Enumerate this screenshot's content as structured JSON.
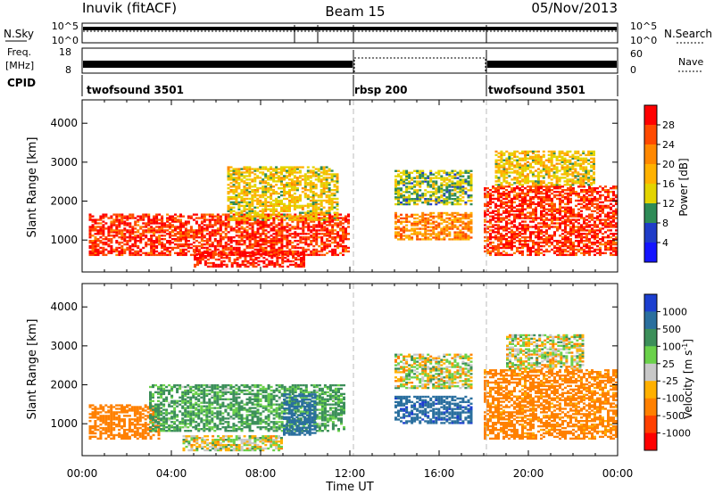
{
  "header": {
    "station": "Inuvik (fitACF)",
    "beam": "Beam 15",
    "date": "05/Nov/2013"
  },
  "top_panels": {
    "nsky_label": "N.Sky",
    "nsky_ticks": [
      "10^5",
      "10^0"
    ],
    "nsearch_label": "N.Search",
    "nsearch_ticks": [
      "10^5",
      "10^0"
    ],
    "freq_label_1": "Freq.",
    "freq_label_2": "[MHz]",
    "freq_ticks": [
      "18",
      "8"
    ],
    "nave_label": "Nave",
    "nave_ticks": [
      "60",
      "0"
    ],
    "cpid_label": "CPID",
    "cpid_segments": [
      {
        "name": "twofsound 3501",
        "start_hour": 0,
        "end_hour": 12
      },
      {
        "name": "rbsp 200",
        "start_hour": 12,
        "end_hour": 18
      },
      {
        "name": "twofsound 3501",
        "start_hour": 18,
        "end_hour": 24
      }
    ]
  },
  "chart_data": [
    {
      "type": "heatmap",
      "title": "",
      "xlabel": "Time UT",
      "ylabel": "Slant Range [km]",
      "xlim": [
        0,
        24
      ],
      "ylim": [
        180,
        4600
      ],
      "x_ticks": [
        "00:00",
        "04:00",
        "08:00",
        "12:00",
        "16:00",
        "20:00",
        "00:00"
      ],
      "y_ticks": [
        1000,
        2000,
        3000,
        4000
      ],
      "colorbar": {
        "label": "Power [dB]",
        "ticks": [
          "28",
          "24",
          "20",
          "16",
          "12",
          "8",
          "4"
        ],
        "colors": [
          "#ff0000",
          "#ff4a00",
          "#ff8800",
          "#ffb200",
          "#e3d400",
          "#2e8b57",
          "#1f3cc8",
          "#1414ff"
        ]
      },
      "regions": [
        {
          "t0": 0.3,
          "t1": 12.0,
          "r0": 600,
          "r1": 1700,
          "level": 26
        },
        {
          "t0": 5.0,
          "t1": 10.0,
          "r0": 300,
          "r1": 700,
          "level": 28
        },
        {
          "t0": 6.5,
          "t1": 11.5,
          "r0": 1500,
          "r1": 2900,
          "level": 14
        },
        {
          "t0": 14.0,
          "t1": 17.5,
          "r0": 1000,
          "r1": 1700,
          "level": 20
        },
        {
          "t0": 14.0,
          "t1": 17.5,
          "r0": 1900,
          "r1": 2800,
          "level": 10
        },
        {
          "t0": 18.0,
          "t1": 24.0,
          "r0": 600,
          "r1": 2400,
          "level": 26
        },
        {
          "t0": 18.5,
          "t1": 23.0,
          "r0": 2400,
          "r1": 3300,
          "level": 14
        }
      ]
    },
    {
      "type": "heatmap",
      "title": "",
      "xlabel": "Time UT",
      "ylabel": "Slant Range [km]",
      "xlim": [
        0,
        24
      ],
      "ylim": [
        180,
        4600
      ],
      "x_ticks": [
        "00:00",
        "04:00",
        "08:00",
        "12:00",
        "16:00",
        "20:00",
        "00:00"
      ],
      "y_ticks": [
        1000,
        2000,
        3000,
        4000
      ],
      "colorbar": {
        "label": "Velocity [m s^-1]",
        "ticks": [
          "1000",
          "500",
          "100",
          "25",
          "-25",
          "-100",
          "-500",
          "-1000"
        ],
        "colors": [
          "#1c3fd0",
          "#2a6f9e",
          "#3c8f5a",
          "#6ad14a",
          "#c8c8c8",
          "#ffb000",
          "#ff8000",
          "#ff4000",
          "#ff0000"
        ]
      },
      "regions": [
        {
          "t0": 0.3,
          "t1": 3.5,
          "r0": 600,
          "r1": 1500,
          "level": -300
        },
        {
          "t0": 3.0,
          "t1": 11.8,
          "r0": 800,
          "r1": 2000,
          "level": 150
        },
        {
          "t0": 9.0,
          "t1": 10.5,
          "r0": 700,
          "r1": 1800,
          "level": 700
        },
        {
          "t0": 4.5,
          "t1": 9.0,
          "r0": 300,
          "r1": 700,
          "level": 0
        },
        {
          "t0": 14.0,
          "t1": 17.5,
          "r0": 1000,
          "r1": 1700,
          "level": 900
        },
        {
          "t0": 14.0,
          "t1": 17.5,
          "r0": 1900,
          "r1": 2800,
          "level": 0
        },
        {
          "t0": 18.0,
          "t1": 24.0,
          "r0": 600,
          "r1": 2400,
          "level": -200
        },
        {
          "t0": 19.0,
          "t1": 22.5,
          "r0": 2400,
          "r1": 3300,
          "level": 0
        }
      ]
    }
  ]
}
